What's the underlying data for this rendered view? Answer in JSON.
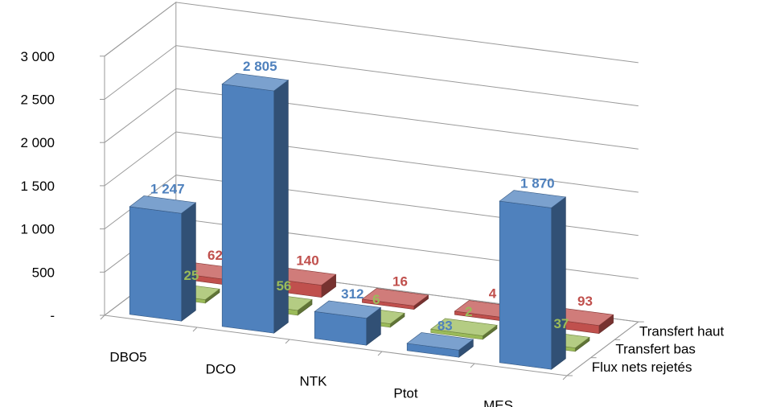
{
  "chart_data": {
    "type": "bar",
    "subtype": "3d-column",
    "categories": [
      "DBO5",
      "DCO",
      "NTK",
      "Ptot",
      "MES"
    ],
    "series": [
      {
        "name": "Flux nets rejetés",
        "values": [
          1247,
          2805,
          312,
          83,
          1870
        ],
        "labels": [
          "1 247",
          "2 805",
          "312",
          "83",
          "1 870"
        ],
        "color": "#4F81BD"
      },
      {
        "name": "Transfert bas",
        "values": [
          25,
          56,
          6,
          2,
          37
        ],
        "labels": [
          "25",
          "56",
          "6",
          "2",
          "37"
        ],
        "color": "#9BBB59"
      },
      {
        "name": "Transfert haut",
        "values": [
          62,
          140,
          16,
          4,
          93
        ],
        "labels": [
          "62",
          "140",
          "16",
          "4",
          "93"
        ],
        "color": "#C0504D"
      }
    ],
    "yticks": [
      0,
      500,
      1000,
      1500,
      2000,
      2500,
      3000
    ],
    "ytick_labels": [
      "-",
      "500",
      "1 000",
      "1 500",
      "2 000",
      "2 500",
      "3 000"
    ],
    "ylim": [
      0,
      3000
    ],
    "grid": true,
    "title": "",
    "xlabel": "",
    "ylabel": ""
  }
}
